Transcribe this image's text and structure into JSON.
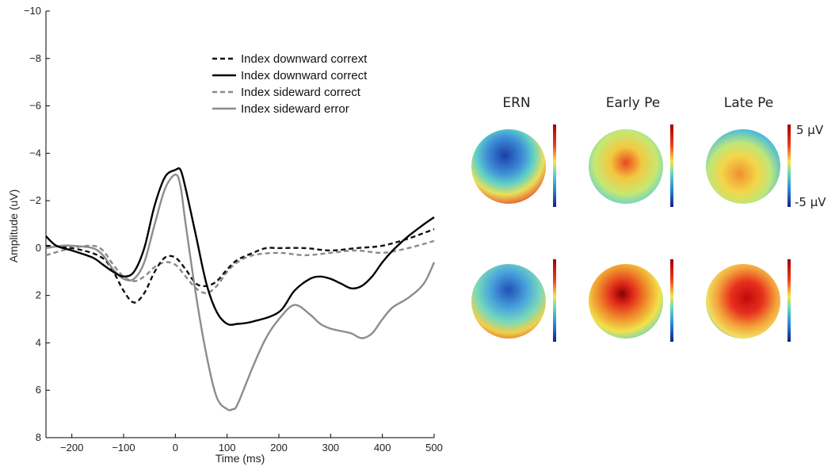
{
  "chart_data": {
    "type": "line",
    "xlabel": "Time (ms)",
    "ylabel": "Amplitude (uV)",
    "xlim": [
      -250,
      500
    ],
    "ylim": [
      8,
      -10
    ],
    "y_axis_inverted": true,
    "xticks": [
      -200,
      -100,
      0,
      100,
      200,
      300,
      400,
      500
    ],
    "yticks": [
      -10,
      -8,
      -6,
      -4,
      -2,
      0,
      2,
      4,
      6,
      8
    ],
    "xtick_labels": [
      "−200",
      "−100",
      "0",
      "100",
      "200",
      "300",
      "400",
      "500"
    ],
    "ytick_labels": [
      "−10",
      "−8",
      "−6",
      "−4",
      "−2",
      "0",
      "2",
      "4",
      "6",
      "8"
    ],
    "grid": false,
    "legend_position": "top-center",
    "series": [
      {
        "name": "Index downward corrext",
        "color": "#111111",
        "style": "dashed",
        "x": [
          -250,
          -200,
          -150,
          -125,
          -100,
          -80,
          -60,
          -40,
          -20,
          0,
          20,
          40,
          60,
          80,
          100,
          120,
          150,
          175,
          200,
          250,
          300,
          350,
          400,
          450,
          500
        ],
        "y": [
          -0.1,
          0.0,
          0.3,
          0.8,
          1.8,
          2.3,
          1.9,
          1.0,
          0.4,
          0.4,
          0.9,
          1.5,
          1.6,
          1.4,
          0.9,
          0.5,
          0.2,
          0.0,
          0.0,
          0.0,
          0.1,
          0.0,
          -0.1,
          -0.4,
          -0.8
        ]
      },
      {
        "name": "Index downward correct",
        "color": "#000000",
        "style": "solid",
        "x": [
          -250,
          -230,
          -200,
          -160,
          -140,
          -120,
          -100,
          -80,
          -60,
          -40,
          -20,
          0,
          10,
          20,
          40,
          60,
          80,
          100,
          120,
          150,
          200,
          230,
          260,
          280,
          300,
          320,
          340,
          360,
          380,
          400,
          420,
          450,
          480,
          500
        ],
        "y": [
          -0.5,
          -0.1,
          0.1,
          0.4,
          0.7,
          1.0,
          1.2,
          1.0,
          0.0,
          -1.8,
          -3.0,
          -3.3,
          -3.3,
          -2.5,
          -0.5,
          1.5,
          2.7,
          3.2,
          3.2,
          3.1,
          2.7,
          1.8,
          1.3,
          1.2,
          1.3,
          1.5,
          1.7,
          1.6,
          1.2,
          0.6,
          0.1,
          -0.5,
          -1.0,
          -1.3
        ]
      },
      {
        "name": "Index sideward correct",
        "color": "#8a8a8a",
        "style": "dashed",
        "x": [
          -250,
          -200,
          -160,
          -140,
          -120,
          -100,
          -80,
          -60,
          -40,
          -20,
          0,
          20,
          40,
          60,
          80,
          100,
          120,
          150,
          200,
          250,
          300,
          350,
          400,
          450,
          500
        ],
        "y": [
          0.3,
          0.0,
          -0.1,
          0.1,
          0.7,
          1.2,
          1.4,
          1.2,
          0.8,
          0.6,
          0.7,
          1.2,
          1.7,
          1.9,
          1.6,
          1.0,
          0.6,
          0.3,
          0.2,
          0.3,
          0.2,
          0.1,
          0.2,
          0.0,
          -0.3
        ]
      },
      {
        "name": "Index sideward error",
        "color": "#8c8c8c",
        "style": "solid",
        "x": [
          -250,
          -220,
          -200,
          -160,
          -140,
          -120,
          -100,
          -80,
          -60,
          -40,
          -20,
          0,
          10,
          20,
          40,
          60,
          80,
          100,
          110,
          120,
          150,
          175,
          200,
          230,
          260,
          280,
          300,
          320,
          340,
          360,
          380,
          400,
          420,
          450,
          480,
          500
        ],
        "y": [
          0.0,
          -0.1,
          -0.1,
          0.0,
          0.3,
          0.9,
          1.3,
          1.3,
          0.6,
          -1.0,
          -2.5,
          -3.1,
          -2.6,
          -1.0,
          2.0,
          4.5,
          6.3,
          6.8,
          6.8,
          6.6,
          5.0,
          3.8,
          3.0,
          2.4,
          2.8,
          3.2,
          3.4,
          3.5,
          3.6,
          3.8,
          3.6,
          3.0,
          2.5,
          2.1,
          1.5,
          0.6
        ]
      }
    ]
  },
  "topomaps": {
    "columns": [
      "ERN",
      "Early Pe",
      "Late Pe"
    ],
    "colorbar_max": "5 µV",
    "colorbar_min": "-5 µV"
  }
}
